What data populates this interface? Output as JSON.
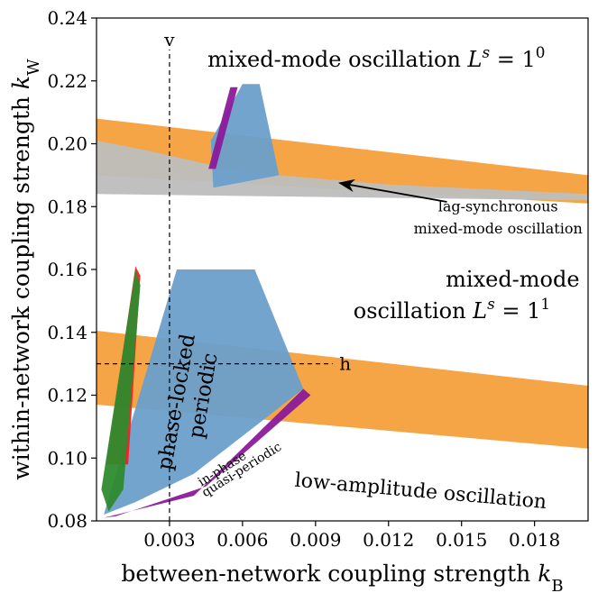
{
  "chart_data": {
    "type": "scatter",
    "title": "",
    "xlabel": "between-network coupling strength",
    "xlabel_symbol": "k",
    "xlabel_sub": "B",
    "ylabel": "within-network coupling strength",
    "ylabel_symbol": "k",
    "ylabel_sub": "W",
    "xlim": [
      0.0,
      0.0202
    ],
    "ylim": [
      0.08,
      0.24
    ],
    "x_ticks": [
      0.003,
      0.006,
      0.009,
      0.012,
      0.015,
      0.018
    ],
    "x_tick_labels": [
      "0.003",
      "0.006",
      "0.009",
      "0.012",
      "0.015",
      "0.018"
    ],
    "y_ticks": [
      0.08,
      0.1,
      0.12,
      0.14,
      0.16,
      0.18,
      0.2,
      0.22,
      0.24
    ],
    "y_tick_labels": [
      "0.08",
      "0.10",
      "0.12",
      "0.14",
      "0.16",
      "0.18",
      "0.20",
      "0.22",
      "0.24"
    ],
    "grid": false,
    "colors": {
      "mixed_mode": "#f5a03c",
      "lag_synchronous": "#bdbdbd",
      "phase_locked_periodic": "#6a9fcb",
      "in_phase_quasi_periodic": "#8b1a9a",
      "red": "#ff1a1a",
      "green": "#2e8b2e"
    },
    "guides": [
      {
        "label": "v",
        "orientation": "vertical",
        "x": 0.003,
        "y_from": 0.08,
        "y_to": 0.23
      },
      {
        "label": "h",
        "orientation": "horizontal",
        "y": 0.13,
        "x_from": 0.0,
        "x_to": 0.0097
      }
    ],
    "annotations": [
      {
        "text": "mixed-mode oscillation",
        "math_base": "L",
        "math_sup": "s",
        "math_tail": " = 1",
        "math_exp": "0",
        "x": 0.0115,
        "y": 0.2245
      },
      {
        "text": "lag-synchronous",
        "x": 0.0165,
        "y": 0.1785
      },
      {
        "text": "mixed-mode oscillation",
        "x": 0.0165,
        "y": 0.1715
      },
      {
        "text": "mixed-mode",
        "x": 0.0171,
        "y": 0.1545
      },
      {
        "text": "oscillation",
        "math_base": "L",
        "math_sup": "s",
        "math_tail": " = 1",
        "math_exp": "1",
        "x": 0.0146,
        "y": 0.1445
      },
      {
        "text": "phase-locked",
        "x": 0.00355,
        "y": 0.1175,
        "rotate": -80
      },
      {
        "text": "periodic",
        "x": 0.00465,
        "y": 0.1195,
        "rotate": -80
      },
      {
        "text": "in-phase",
        "x": 0.00525,
        "y": 0.0955,
        "rotate": -32
      },
      {
        "text": "quasi-periodic",
        "x": 0.00605,
        "y": 0.0952,
        "rotate": -32
      },
      {
        "text": "low-amplitude oscillation",
        "x": 0.0133,
        "y": 0.0875,
        "rotate": 5
      }
    ],
    "arrow": {
      "from": [
        0.0144,
        0.1815
      ],
      "to": [
        0.01,
        0.1875
      ]
    },
    "regions": [
      {
        "name": "mixed-mode (upper band)",
        "color": "mixed_mode",
        "polygon": [
          [
            0.0,
            0.208
          ],
          [
            0.0202,
            0.19
          ],
          [
            0.0202,
            0.181
          ],
          [
            0.0,
            0.19
          ]
        ]
      },
      {
        "name": "mixed-mode (lower band)",
        "color": "mixed_mode",
        "polygon": [
          [
            0.0,
            0.1405
          ],
          [
            0.0202,
            0.123
          ],
          [
            0.0202,
            0.103
          ],
          [
            0.0,
            0.117
          ]
        ]
      },
      {
        "name": "lag-synchronous",
        "color": "lag_synchronous",
        "polygon": [
          [
            0.0,
            0.201
          ],
          [
            0.002,
            0.198
          ],
          [
            0.006,
            0.191
          ],
          [
            0.012,
            0.187
          ],
          [
            0.0202,
            0.184
          ],
          [
            0.0202,
            0.182
          ],
          [
            0.0,
            0.184
          ]
        ]
      },
      {
        "name": "phase-locked periodic (lower)",
        "color": "phase_locked_periodic",
        "polygon": [
          [
            0.0003,
            0.082
          ],
          [
            0.0033,
            0.16
          ],
          [
            0.0065,
            0.16
          ],
          [
            0.0085,
            0.122
          ],
          [
            0.004,
            0.095
          ],
          [
            0.0016,
            0.086
          ]
        ]
      },
      {
        "name": "phase-locked periodic (upper)",
        "color": "phase_locked_periodic",
        "polygon": [
          [
            0.0047,
            0.201
          ],
          [
            0.006,
            0.219
          ],
          [
            0.0067,
            0.219
          ],
          [
            0.0075,
            0.19
          ],
          [
            0.0048,
            0.186
          ]
        ]
      },
      {
        "name": "in-phase quasi-periodic",
        "color": "in_phase_quasi_periodic",
        "polygon": [
          [
            0.0003,
            0.081
          ],
          [
            0.004,
            0.088
          ],
          [
            0.0085,
            0.122
          ],
          [
            0.0088,
            0.12
          ],
          [
            0.0045,
            0.091
          ],
          [
            0.0008,
            0.0815
          ]
        ]
      },
      {
        "name": "in-phase quasi-periodic (upper edge)",
        "color": "in_phase_quasi_periodic",
        "polygon": [
          [
            0.0046,
            0.192
          ],
          [
            0.0055,
            0.218
          ],
          [
            0.0058,
            0.218
          ],
          [
            0.0049,
            0.192
          ]
        ]
      },
      {
        "name": "red cluster",
        "color": "red",
        "polygon": [
          [
            0.0004,
            0.098
          ],
          [
            0.0016,
            0.161
          ],
          [
            0.0018,
            0.158
          ],
          [
            0.0013,
            0.098
          ]
        ]
      },
      {
        "name": "green cluster",
        "color": "green",
        "polygon": [
          [
            0.0002,
            0.09
          ],
          [
            0.0016,
            0.16
          ],
          [
            0.0018,
            0.155
          ],
          [
            0.0011,
            0.09
          ],
          [
            0.0005,
            0.083
          ]
        ]
      }
    ]
  }
}
